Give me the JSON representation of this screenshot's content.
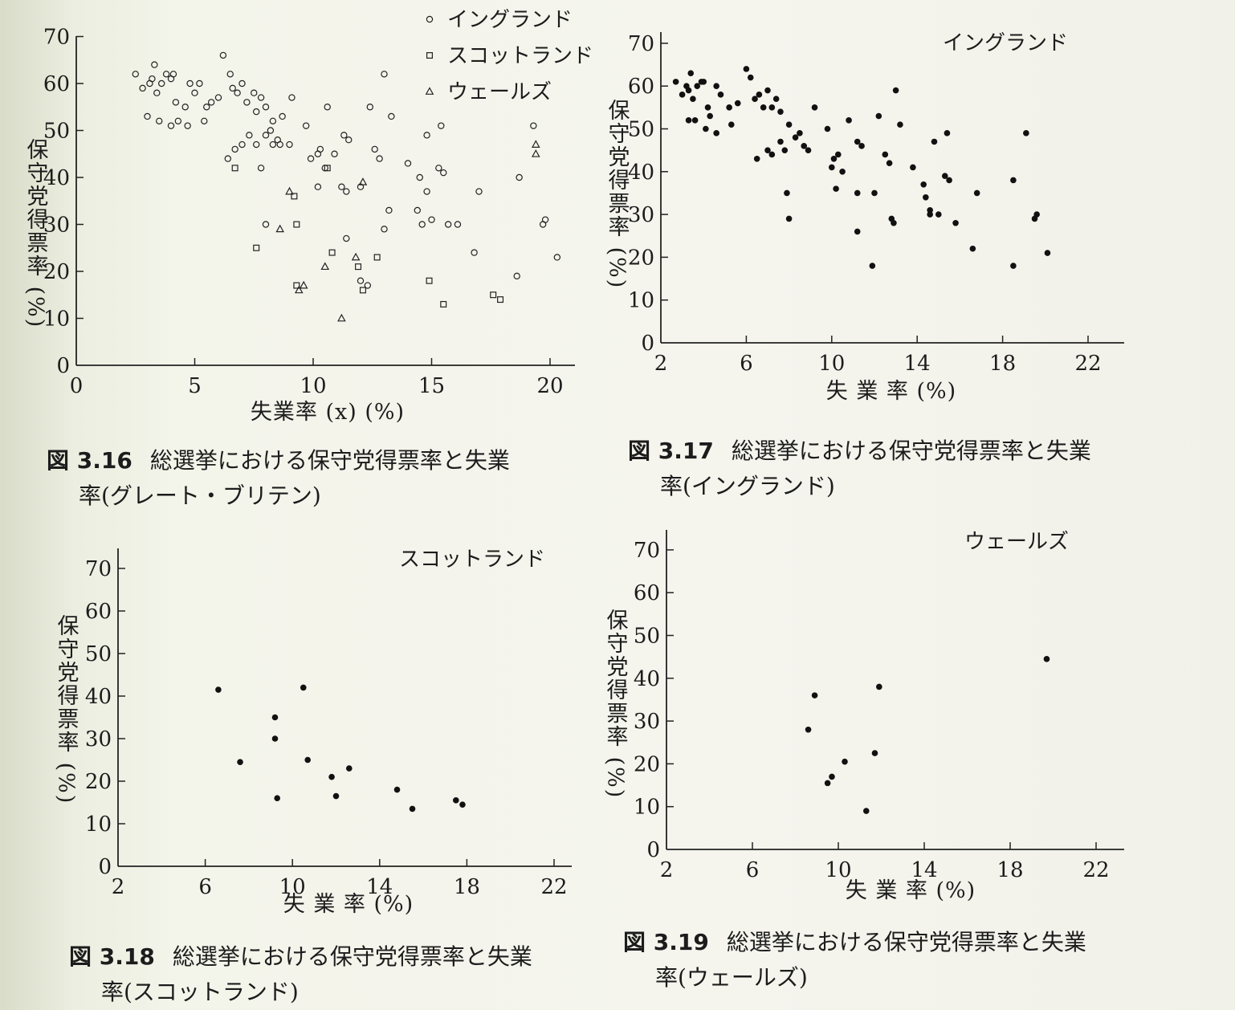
{
  "chart_data": [
    {
      "type": "scatter",
      "title": "",
      "xlabel": "失業率 (x) (%)",
      "ylabel": "保守党得票率 (%)",
      "xlim": [
        0,
        21
      ],
      "ylim": [
        0,
        70
      ],
      "xticks": [
        "0",
        "5",
        "10",
        "15",
        "20"
      ],
      "yticks": [
        "0",
        "10",
        "20",
        "30",
        "40",
        "50",
        "60",
        "70"
      ],
      "legend_position": "top-right",
      "series": [
        {
          "name": "イングランド",
          "marker": "circle-open",
          "points": [
            [
              2.5,
              62
            ],
            [
              2.8,
              59
            ],
            [
              3.1,
              60
            ],
            [
              3.2,
              61
            ],
            [
              3.3,
              64
            ],
            [
              3.4,
              58
            ],
            [
              3.6,
              60
            ],
            [
              3.8,
              62
            ],
            [
              4.0,
              61
            ],
            [
              4.1,
              62
            ],
            [
              4.2,
              56
            ],
            [
              4.6,
              55
            ],
            [
              4.8,
              60
            ],
            [
              5.0,
              58
            ],
            [
              5.2,
              60
            ],
            [
              5.5,
              55
            ],
            [
              5.7,
              56
            ],
            [
              6.0,
              57
            ],
            [
              3.0,
              53
            ],
            [
              3.5,
              52
            ],
            [
              4.0,
              51
            ],
            [
              4.3,
              52
            ],
            [
              4.7,
              51
            ],
            [
              5.4,
              52
            ],
            [
              6.2,
              66
            ],
            [
              6.5,
              62
            ],
            [
              6.6,
              59
            ],
            [
              6.8,
              58
            ],
            [
              7.0,
              60
            ],
            [
              7.2,
              56
            ],
            [
              7.5,
              58
            ],
            [
              7.6,
              54
            ],
            [
              7.8,
              57
            ],
            [
              8.0,
              55
            ],
            [
              8.2,
              50
            ],
            [
              8.3,
              52
            ],
            [
              8.5,
              48
            ],
            [
              6.4,
              44
            ],
            [
              6.7,
              46
            ],
            [
              7.0,
              47
            ],
            [
              7.3,
              49
            ],
            [
              7.6,
              47
            ],
            [
              7.8,
              42
            ],
            [
              8.0,
              49
            ],
            [
              8.3,
              47
            ],
            [
              8.6,
              47
            ],
            [
              8.7,
              53
            ],
            [
              9.0,
              47
            ],
            [
              9.1,
              57
            ],
            [
              9.7,
              51
            ],
            [
              9.9,
              44
            ],
            [
              10.2,
              45
            ],
            [
              10.3,
              46
            ],
            [
              10.5,
              42
            ],
            [
              10.6,
              55
            ],
            [
              10.9,
              45
            ],
            [
              11.2,
              38
            ],
            [
              11.3,
              49
            ],
            [
              11.5,
              48
            ],
            [
              12.0,
              38
            ],
            [
              12.4,
              55
            ],
            [
              12.6,
              46
            ],
            [
              12.8,
              44
            ],
            [
              13.0,
              62
            ],
            [
              13.3,
              53
            ],
            [
              10.2,
              38
            ],
            [
              11.4,
              37
            ],
            [
              14.0,
              43
            ],
            [
              14.4,
              33
            ],
            [
              14.6,
              30
            ],
            [
              14.8,
              37
            ],
            [
              15.0,
              31
            ],
            [
              15.3,
              42
            ],
            [
              15.5,
              41
            ],
            [
              15.7,
              30
            ],
            [
              14.5,
              40
            ],
            [
              15.4,
              51
            ],
            [
              14.8,
              49
            ],
            [
              16.1,
              30
            ],
            [
              17.0,
              37
            ],
            [
              18.7,
              40
            ],
            [
              19.3,
              51
            ],
            [
              19.7,
              30
            ],
            [
              19.8,
              31
            ],
            [
              20.3,
              23
            ],
            [
              16.8,
              24
            ],
            [
              18.6,
              19
            ],
            [
              11.4,
              27
            ],
            [
              12.0,
              18
            ],
            [
              12.3,
              17
            ],
            [
              13.2,
              33
            ],
            [
              13.0,
              29
            ],
            [
              8.0,
              30
            ]
          ]
        },
        {
          "name": "スコットランド",
          "marker": "square-open",
          "points": [
            [
              7.6,
              25
            ],
            [
              9.2,
              36
            ],
            [
              9.3,
              30
            ],
            [
              10.8,
              24
            ],
            [
              11.9,
              21
            ],
            [
              12.1,
              16
            ],
            [
              12.7,
              23
            ],
            [
              14.9,
              18
            ],
            [
              15.5,
              13
            ],
            [
              17.6,
              15
            ],
            [
              17.9,
              14
            ],
            [
              6.7,
              42
            ],
            [
              10.6,
              42
            ],
            [
              9.3,
              17
            ]
          ]
        },
        {
          "name": "ウェールズ",
          "marker": "triangle-open",
          "points": [
            [
              8.6,
              29
            ],
            [
              9.0,
              37
            ],
            [
              9.4,
              16
            ],
            [
              9.6,
              17
            ],
            [
              10.5,
              21
            ],
            [
              11.2,
              10
            ],
            [
              11.8,
              23
            ],
            [
              12.1,
              39
            ],
            [
              19.4,
              47
            ],
            [
              19.4,
              45
            ]
          ]
        }
      ],
      "caption_number": "図 3.16",
      "caption": "総選挙における保守党得票率と失業率(グレート・ブリテン)"
    },
    {
      "type": "scatter",
      "title": "イングランド",
      "xlabel": "失 業 率 (%)",
      "ylabel": "保守党得票率 (%)",
      "xlim": [
        2,
        23
      ],
      "ylim": [
        0,
        70
      ],
      "xticks": [
        "2",
        "6",
        "10",
        "14",
        "18",
        "22"
      ],
      "yticks": [
        "0",
        "10",
        "20",
        "30",
        "40",
        "50",
        "60",
        "70"
      ],
      "series": [
        {
          "name": "",
          "marker": "dot",
          "points": [
            [
              2.7,
              61
            ],
            [
              3.0,
              58
            ],
            [
              3.2,
              60
            ],
            [
              3.3,
              59
            ],
            [
              3.4,
              63
            ],
            [
              3.5,
              57
            ],
            [
              3.7,
              60
            ],
            [
              3.9,
              61
            ],
            [
              4.0,
              61
            ],
            [
              4.2,
              55
            ],
            [
              4.6,
              60
            ],
            [
              4.8,
              58
            ],
            [
              5.2,
              55
            ],
            [
              5.6,
              56
            ],
            [
              6.0,
              64
            ],
            [
              6.2,
              62
            ],
            [
              6.4,
              57
            ],
            [
              6.6,
              58
            ],
            [
              6.8,
              55
            ],
            [
              7.0,
              59
            ],
            [
              7.2,
              55
            ],
            [
              7.4,
              57
            ],
            [
              7.6,
              54
            ],
            [
              3.3,
              52
            ],
            [
              3.6,
              52
            ],
            [
              4.1,
              50
            ],
            [
              4.3,
              53
            ],
            [
              4.6,
              49
            ],
            [
              5.3,
              51
            ],
            [
              6.5,
              43
            ],
            [
              7.0,
              45
            ],
            [
              7.2,
              44
            ],
            [
              7.6,
              47
            ],
            [
              7.8,
              45
            ],
            [
              8.0,
              51
            ],
            [
              8.3,
              48
            ],
            [
              8.5,
              49
            ],
            [
              8.7,
              46
            ],
            [
              8.9,
              45
            ],
            [
              9.2,
              55
            ],
            [
              9.8,
              50
            ],
            [
              10.0,
              41
            ],
            [
              10.1,
              43
            ],
            [
              10.3,
              44
            ],
            [
              10.5,
              40
            ],
            [
              10.8,
              52
            ],
            [
              11.2,
              47
            ],
            [
              11.4,
              46
            ],
            [
              12.0,
              35
            ],
            [
              12.2,
              53
            ],
            [
              12.5,
              44
            ],
            [
              12.7,
              42
            ],
            [
              13.0,
              59
            ],
            [
              13.2,
              51
            ],
            [
              10.2,
              36
            ],
            [
              11.2,
              35
            ],
            [
              13.8,
              41
            ],
            [
              14.3,
              37
            ],
            [
              14.4,
              34
            ],
            [
              14.6,
              31
            ],
            [
              15.0,
              30
            ],
            [
              15.3,
              39
            ],
            [
              15.5,
              38
            ],
            [
              15.8,
              28
            ],
            [
              14.6,
              30
            ],
            [
              15.4,
              49
            ],
            [
              14.8,
              47
            ],
            [
              16.8,
              35
            ],
            [
              18.5,
              38
            ],
            [
              19.1,
              49
            ],
            [
              19.5,
              29
            ],
            [
              19.6,
              30
            ],
            [
              20.1,
              21
            ],
            [
              16.6,
              22
            ],
            [
              18.5,
              18
            ],
            [
              11.2,
              26
            ],
            [
              11.9,
              18
            ],
            [
              12.8,
              29
            ],
            [
              12.9,
              28
            ],
            [
              8.0,
              29
            ],
            [
              7.9,
              35
            ]
          ]
        }
      ],
      "caption_number": "図 3.17",
      "caption": "総選挙における保守党得票率と失業率(イングランド)"
    },
    {
      "type": "scatter",
      "title": "スコットランド",
      "xlabel": "失 業 率 (%)",
      "ylabel": "保守党得票率 (%)",
      "xlim": [
        2,
        23
      ],
      "ylim": [
        0,
        70
      ],
      "xticks": [
        "2",
        "6",
        "10",
        "14",
        "18",
        "22"
      ],
      "yticks": [
        "0",
        "10",
        "20",
        "30",
        "40",
        "50",
        "60",
        "70"
      ],
      "series": [
        {
          "name": "",
          "marker": "dot",
          "points": [
            [
              6.6,
              41.5
            ],
            [
              7.6,
              24.5
            ],
            [
              9.2,
              35
            ],
            [
              9.2,
              30
            ],
            [
              9.3,
              16
            ],
            [
              10.5,
              42
            ],
            [
              10.7,
              25
            ],
            [
              11.8,
              21
            ],
            [
              12.0,
              16.5
            ],
            [
              12.6,
              23
            ],
            [
              14.8,
              18
            ],
            [
              15.5,
              13.5
            ],
            [
              17.5,
              15.5
            ],
            [
              17.8,
              14.5
            ]
          ]
        }
      ],
      "caption_number": "図 3.18",
      "caption": "総選挙における保守党得票率と失業率(スコットランド)"
    },
    {
      "type": "scatter",
      "title": "ウェールズ",
      "xlabel": "失 業 率 (%)",
      "ylabel": "保守党得票率 (%)",
      "xlim": [
        2,
        23
      ],
      "ylim": [
        0,
        70
      ],
      "xticks": [
        "2",
        "6",
        "10",
        "14",
        "18",
        "22"
      ],
      "yticks": [
        "0",
        "10",
        "20",
        "30",
        "40",
        "50",
        "60",
        "70"
      ],
      "series": [
        {
          "name": "",
          "marker": "dot",
          "points": [
            [
              8.6,
              28
            ],
            [
              8.9,
              36
            ],
            [
              9.5,
              15.5
            ],
            [
              9.7,
              17
            ],
            [
              10.3,
              20.5
            ],
            [
              11.3,
              9
            ],
            [
              11.7,
              22.5
            ],
            [
              11.9,
              38
            ],
            [
              19.7,
              44.5
            ]
          ]
        }
      ],
      "caption_number": "図 3.19",
      "caption": "総選挙における保守党得票率と失業率(ウェールズ)"
    }
  ],
  "captions": [
    {
      "number": "図 3.16",
      "line1": "総選挙における保守党得票率と失業",
      "line2": "率(グレート・ブリテン)"
    },
    {
      "number": "図 3.17",
      "line1": "総選挙における保守党得票率と失業",
      "line2": "率(イングランド)"
    },
    {
      "number": "図 3.18",
      "line1": "総選挙における保守党得票率と失業",
      "line2": "率(スコットランド)"
    },
    {
      "number": "図 3.19",
      "line1": "総選挙における保守党得票率と失業",
      "line2": "率(ウェールズ)"
    }
  ]
}
